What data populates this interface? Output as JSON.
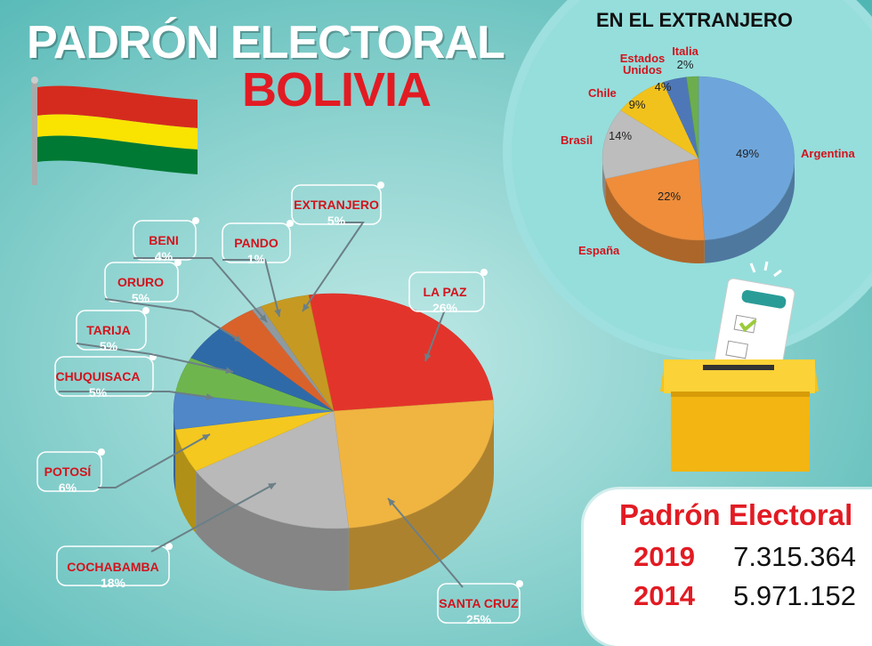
{
  "title": {
    "line1": "PADRÓN ELECTORAL",
    "line2": "BOLIVIA"
  },
  "colors": {
    "red": "#e21b23",
    "flag_red": "#d52b1e",
    "flag_yellow": "#f9e300",
    "flag_green": "#007934"
  },
  "chart_data": [
    {
      "type": "pie",
      "title": "",
      "slices": [
        {
          "label": "LA PAZ",
          "value": 26,
          "display": "26%",
          "color": "#e3342b"
        },
        {
          "label": "SANTA CRUZ",
          "value": 25,
          "display": "25%",
          "color": "#f0b441"
        },
        {
          "label": "COCHABAMBA",
          "value": 18,
          "display": "18%",
          "color": "#b9b9b9"
        },
        {
          "label": "POTOSÍ",
          "value": 6,
          "display": "6%",
          "color": "#f4c81e"
        },
        {
          "label": "CHUQUISACA",
          "value": 5,
          "display": "5%",
          "color": "#4f87c8"
        },
        {
          "label": "TARIJA",
          "value": 5,
          "display": "5%",
          "color": "#6fb54e"
        },
        {
          "label": "ORURO",
          "value": 5,
          "display": "5%",
          "color": "#2f6aa8"
        },
        {
          "label": "BENI",
          "value": 4,
          "display": "4%",
          "color": "#d9622b"
        },
        {
          "label": "PANDO",
          "value": 1,
          "display": "1%",
          "color": "#8e9aa0"
        },
        {
          "label": "EXTRANJERO",
          "value": 5,
          "display": "5%",
          "color": "#c69a22"
        }
      ]
    },
    {
      "type": "pie",
      "title": "EN EL EXTRANJERO",
      "slices": [
        {
          "label": "Argentina",
          "value": 49,
          "display": "49%",
          "color": "#6ea6dc"
        },
        {
          "label": "España",
          "value": 22,
          "display": "22%",
          "color": "#ef8d3a"
        },
        {
          "label": "Brasil",
          "value": 14,
          "display": "14%",
          "color": "#bdbdbd"
        },
        {
          "label": "Chile",
          "value": 9,
          "display": "9%",
          "color": "#f2c21c"
        },
        {
          "label": "Estados Unidos",
          "value": 4,
          "display": "4%",
          "color": "#4e77b8"
        },
        {
          "label": "Italia",
          "value": 2,
          "display": "2%",
          "color": "#6cae4e"
        }
      ]
    },
    {
      "type": "table",
      "title": "Padrón Electoral",
      "rows": [
        {
          "year": "2019",
          "value": "7.315.364"
        },
        {
          "year": "2014",
          "value": "5.971.152"
        }
      ]
    }
  ]
}
